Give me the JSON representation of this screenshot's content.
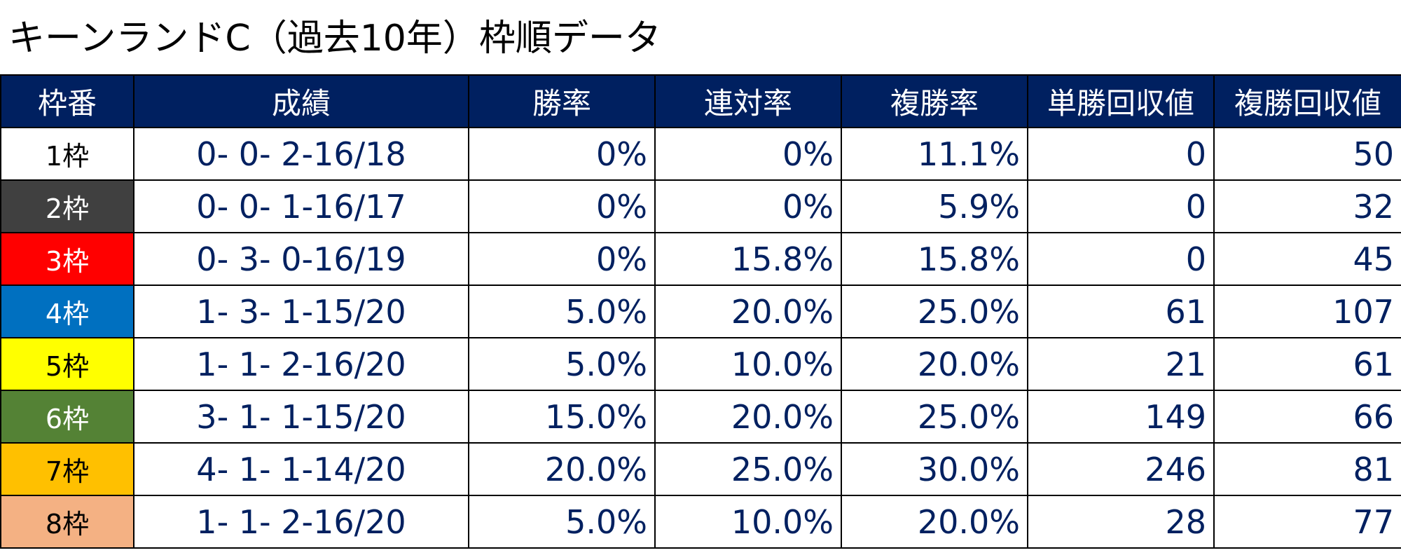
{
  "title": "キーンランドC（過去10年）枠順データ",
  "headers": [
    "枠番",
    "成績",
    "勝率",
    "連対率",
    "複勝率",
    "単勝回収値",
    "複勝回収値"
  ],
  "rows": [
    {
      "waku": "1枠",
      "bg": "#ffffff",
      "fg": "#000000",
      "record": "0- 0- 2-16/18",
      "win": "0%",
      "place2": "0%",
      "place3": "11.1%",
      "tan": "0",
      "fuku": "50"
    },
    {
      "waku": "2枠",
      "bg": "#404040",
      "fg": "#ffffff",
      "record": "0- 0- 1-16/17",
      "win": "0%",
      "place2": "0%",
      "place3": "5.9%",
      "tan": "0",
      "fuku": "32"
    },
    {
      "waku": "3枠",
      "bg": "#ff0000",
      "fg": "#ffffff",
      "record": "0- 3- 0-16/19",
      "win": "0%",
      "place2": "15.8%",
      "place3": "15.8%",
      "tan": "0",
      "fuku": "45"
    },
    {
      "waku": "4枠",
      "bg": "#0070c0",
      "fg": "#ffffff",
      "record": "1- 3- 1-15/20",
      "win": "5.0%",
      "place2": "20.0%",
      "place3": "25.0%",
      "tan": "61",
      "fuku": "107"
    },
    {
      "waku": "5枠",
      "bg": "#ffff00",
      "fg": "#000000",
      "record": "1- 1- 2-16/20",
      "win": "5.0%",
      "place2": "10.0%",
      "place3": "20.0%",
      "tan": "21",
      "fuku": "61"
    },
    {
      "waku": "6枠",
      "bg": "#548235",
      "fg": "#ffffff",
      "record": "3- 1- 1-15/20",
      "win": "15.0%",
      "place2": "20.0%",
      "place3": "25.0%",
      "tan": "149",
      "fuku": "66"
    },
    {
      "waku": "7枠",
      "bg": "#ffc000",
      "fg": "#000000",
      "record": "4- 1- 1-14/20",
      "win": "20.0%",
      "place2": "25.0%",
      "place3": "30.0%",
      "tan": "246",
      "fuku": "81"
    },
    {
      "waku": "8枠",
      "bg": "#f4b183",
      "fg": "#000000",
      "record": "1- 1- 2-16/20",
      "win": "5.0%",
      "place2": "10.0%",
      "place3": "20.0%",
      "tan": "28",
      "fuku": "77"
    }
  ],
  "colors": {
    "header_bg": "#002060",
    "header_text": "#ffffff",
    "value_text": "#002060",
    "border": "#000000"
  }
}
